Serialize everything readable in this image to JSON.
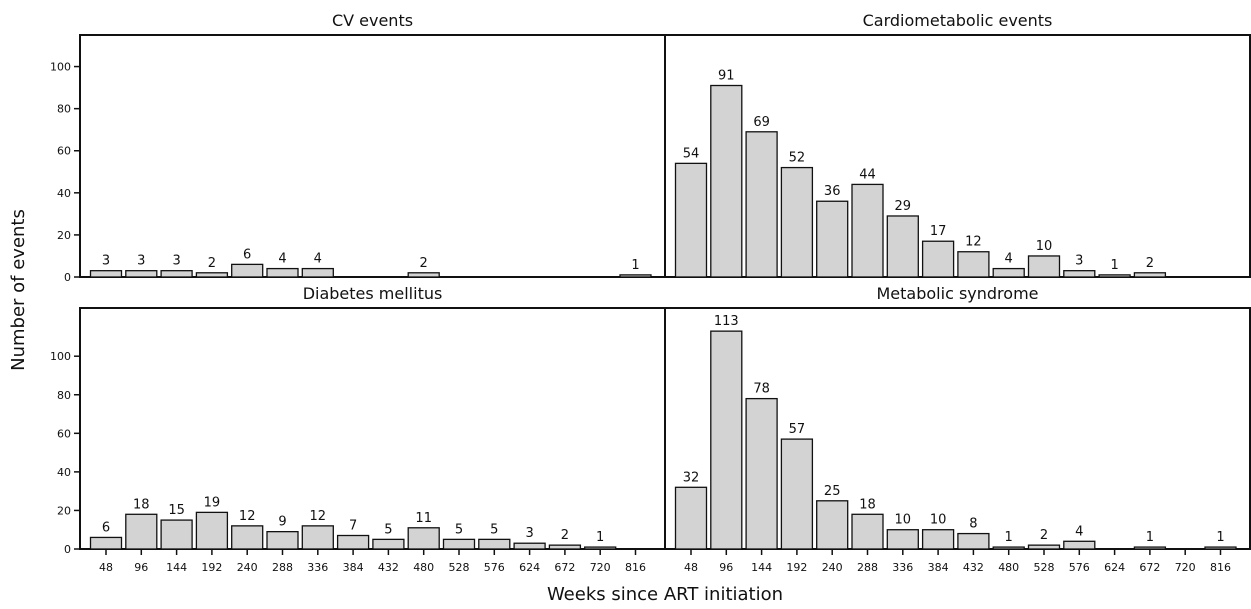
{
  "chart_data": {
    "type": "bar",
    "xlabel": "Weeks since ART initiation",
    "ylabel": "Number of events",
    "categories": [
      "48",
      "96",
      "144",
      "192",
      "240",
      "288",
      "336",
      "384",
      "432",
      "480",
      "528",
      "576",
      "624",
      "672",
      "720",
      "816"
    ],
    "bar_color": "#d3d3d3",
    "edge_color": "#111111",
    "panels": [
      {
        "title": "CV events",
        "ylim": [
          0,
          115
        ],
        "yticks": [
          0,
          20,
          40,
          60,
          80,
          100
        ],
        "values": [
          3,
          3,
          3,
          2,
          6,
          4,
          4,
          null,
          null,
          2,
          null,
          null,
          null,
          null,
          null,
          1
        ]
      },
      {
        "title": "Cardiometabolic events",
        "ylim": [
          0,
          115
        ],
        "yticks": [
          0,
          20,
          40,
          60,
          80,
          100
        ],
        "values": [
          54,
          91,
          69,
          52,
          36,
          44,
          29,
          17,
          12,
          4,
          10,
          3,
          1,
          2,
          null,
          null
        ]
      },
      {
        "title": "Diabetes mellitus",
        "ylim": [
          0,
          125
        ],
        "yticks": [
          0,
          20,
          40,
          60,
          80,
          100
        ],
        "values": [
          6,
          18,
          15,
          19,
          12,
          9,
          12,
          7,
          5,
          11,
          5,
          5,
          3,
          2,
          1,
          null
        ]
      },
      {
        "title": "Metabolic syndrome",
        "ylim": [
          0,
          125
        ],
        "yticks": [
          0,
          20,
          40,
          60,
          80,
          100
        ],
        "values": [
          32,
          113,
          78,
          57,
          25,
          18,
          10,
          10,
          8,
          1,
          2,
          4,
          null,
          1,
          null,
          1
        ]
      }
    ]
  }
}
